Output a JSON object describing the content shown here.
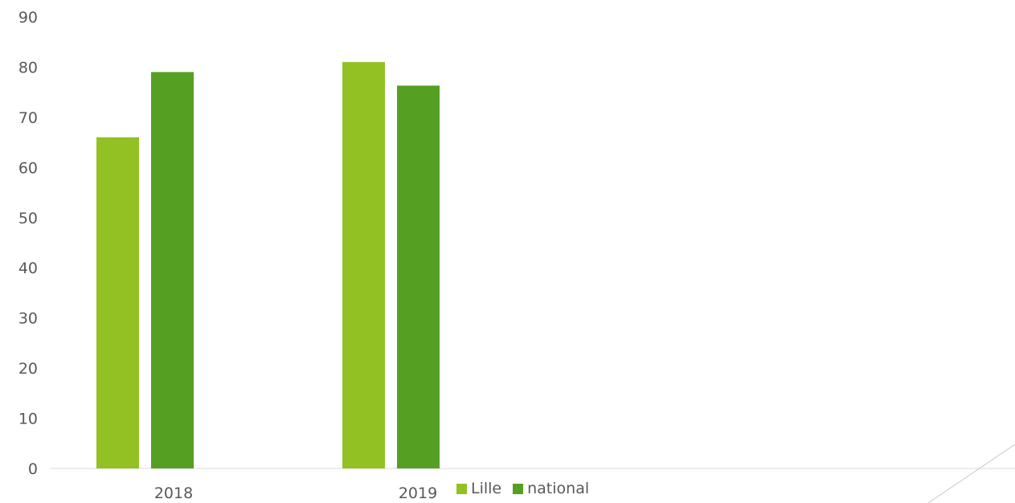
{
  "chart_data": {
    "type": "bar",
    "categories": [
      "2018",
      "2019"
    ],
    "series": [
      {
        "name": "Lille",
        "values": [
          66,
          81
        ],
        "color": "#92c124"
      },
      {
        "name": "national",
        "values": [
          79,
          76.3
        ],
        "color": "#55a022"
      }
    ],
    "yticks": [
      0,
      10,
      20,
      30,
      40,
      50,
      60,
      70,
      80,
      90
    ],
    "ylim": [
      0,
      90
    ],
    "grid": false,
    "legend_position": "bottom"
  }
}
